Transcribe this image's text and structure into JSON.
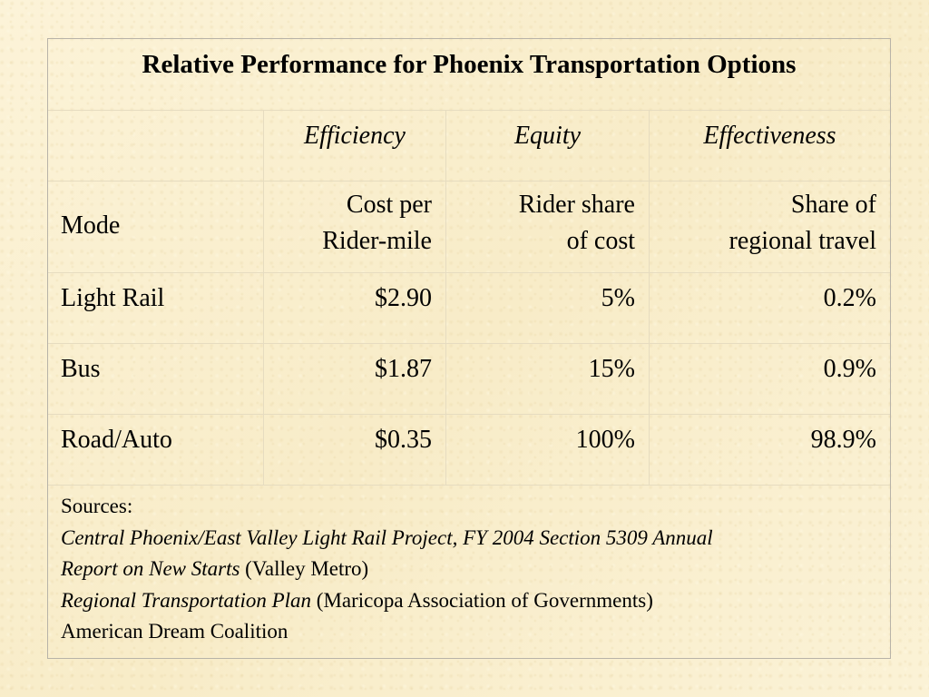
{
  "table": {
    "title": "Relative Performance for Phoenix Transportation Options",
    "category_headers": [
      "",
      "Efficiency",
      "Equity",
      "Effectiveness"
    ],
    "column_headers": {
      "mode": "Mode",
      "cost_line1": "Cost per",
      "cost_line2": "Rider-mile",
      "share_line1": "Rider share",
      "share_line2": "of cost",
      "travel_line1": "Share of",
      "travel_line2": "regional travel"
    },
    "rows": [
      {
        "mode": "Light Rail",
        "cost": "$2.90",
        "rider_share": "5%",
        "travel_share": "0.2%"
      },
      {
        "mode": "Bus",
        "cost": "$1.87",
        "rider_share": "15%",
        "travel_share": "0.9%"
      },
      {
        "mode": "Road/Auto",
        "cost": "$0.35",
        "rider_share": "100%",
        "travel_share": "98.9%"
      }
    ],
    "sources": {
      "label": "Sources:",
      "source1_title_line1": "Central Phoenix/East Valley Light Rail Project, FY 2004 Section 5309 Annual",
      "source1_title_line2": "Report on New Starts",
      "source1_publisher": " (Valley Metro)",
      "source2_title": "Regional Transportation Plan",
      "source2_publisher": " (Maricopa Association of Governments)",
      "source3": "American Dream Coalition"
    }
  }
}
